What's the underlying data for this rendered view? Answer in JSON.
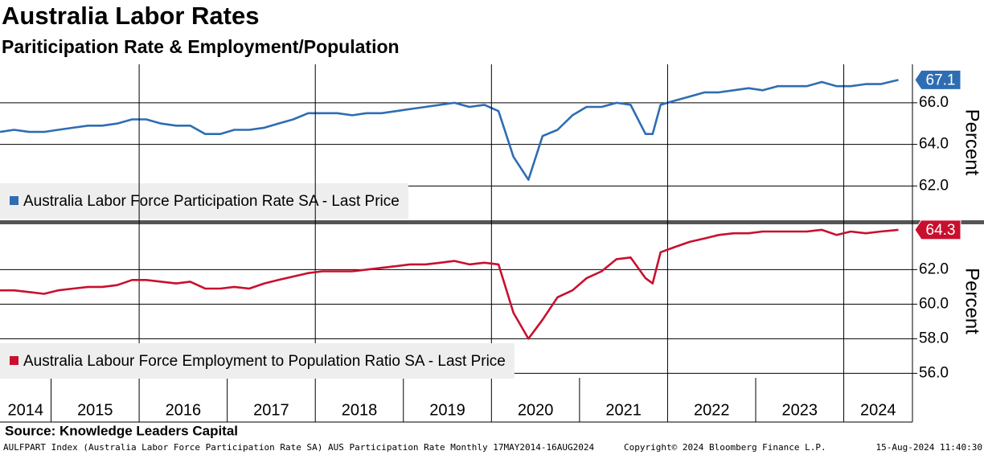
{
  "title": "Australia Labor Rates",
  "subtitle": "Pariticipation Rate & Employment/Population",
  "chart_data": [
    {
      "type": "line",
      "ylabel": "Percent",
      "x": [
        2014.42,
        2014.58,
        2014.75,
        2014.92,
        2015.08,
        2015.25,
        2015.42,
        2015.58,
        2015.75,
        2015.92,
        2016.08,
        2016.25,
        2016.42,
        2016.58,
        2016.75,
        2016.92,
        2017.08,
        2017.25,
        2017.42,
        2017.58,
        2017.75,
        2017.92,
        2018.08,
        2018.25,
        2018.42,
        2018.58,
        2018.75,
        2018.92,
        2019.08,
        2019.25,
        2019.42,
        2019.58,
        2019.75,
        2019.92,
        2020.08,
        2020.25,
        2020.42,
        2020.58,
        2020.75,
        2020.92,
        2021.08,
        2021.25,
        2021.42,
        2021.58,
        2021.75,
        2021.83,
        2021.92,
        2022.08,
        2022.25,
        2022.42,
        2022.58,
        2022.75,
        2022.92,
        2023.08,
        2023.25,
        2023.42,
        2023.58,
        2023.75,
        2023.92,
        2024.08,
        2024.25,
        2024.42,
        2024.62
      ],
      "xlim": [
        2014.42,
        2024.78
      ],
      "ylim": [
        60.35,
        67.85
      ],
      "yticks": [
        {
          "value": 62,
          "label": "62.0"
        },
        {
          "value": 64,
          "label": "64.0"
        },
        {
          "value": 66,
          "label": "66.0"
        }
      ],
      "series": [
        {
          "name": "Australia Labor Force Participation Rate SA - Last Price",
          "color": "#2e6db3",
          "values": [
            64.6,
            64.7,
            64.6,
            64.6,
            64.7,
            64.8,
            64.9,
            64.9,
            65.0,
            65.2,
            65.2,
            65.0,
            64.9,
            64.9,
            64.5,
            64.5,
            64.7,
            64.7,
            64.8,
            65.0,
            65.2,
            65.5,
            65.5,
            65.5,
            65.4,
            65.5,
            65.5,
            65.6,
            65.7,
            65.8,
            65.9,
            66.0,
            65.8,
            65.9,
            65.6,
            63.4,
            62.3,
            64.4,
            64.7,
            65.4,
            65.8,
            65.8,
            66.0,
            65.9,
            64.5,
            64.5,
            65.9,
            66.1,
            66.3,
            66.5,
            66.5,
            66.6,
            66.7,
            66.6,
            66.8,
            66.8,
            66.8,
            67.0,
            66.8,
            66.8,
            66.9,
            66.9,
            67.1
          ]
        }
      ]
    },
    {
      "type": "line",
      "ylabel": "Percent",
      "x": [
        2014.42,
        2014.58,
        2014.75,
        2014.92,
        2015.08,
        2015.25,
        2015.42,
        2015.58,
        2015.75,
        2015.92,
        2016.08,
        2016.25,
        2016.42,
        2016.58,
        2016.75,
        2016.92,
        2017.08,
        2017.25,
        2017.42,
        2017.58,
        2017.75,
        2017.92,
        2018.08,
        2018.25,
        2018.42,
        2018.58,
        2018.75,
        2018.92,
        2019.08,
        2019.25,
        2019.42,
        2019.58,
        2019.75,
        2019.92,
        2020.08,
        2020.25,
        2020.42,
        2020.58,
        2020.75,
        2020.92,
        2021.08,
        2021.25,
        2021.42,
        2021.58,
        2021.75,
        2021.83,
        2021.92,
        2022.08,
        2022.25,
        2022.42,
        2022.58,
        2022.75,
        2022.92,
        2023.08,
        2023.25,
        2023.42,
        2023.58,
        2023.75,
        2023.92,
        2024.08,
        2024.25,
        2024.42,
        2024.62
      ],
      "xlim": [
        2014.42,
        2024.78
      ],
      "xticks": [
        2014,
        2015,
        2016,
        2017,
        2018,
        2019,
        2020,
        2021,
        2022,
        2023,
        2024
      ],
      "ylim": [
        55.74,
        64.62
      ],
      "yticks": [
        {
          "value": 56,
          "label": "56.0"
        },
        {
          "value": 58,
          "label": "58.0"
        },
        {
          "value": 60,
          "label": "60.0"
        },
        {
          "value": 62,
          "label": "62.0"
        }
      ],
      "series": [
        {
          "name": "Australia Labour Force Employment to Population Ratio SA - Last Price",
          "color": "#c8102e",
          "values": [
            60.8,
            60.8,
            60.7,
            60.6,
            60.8,
            60.9,
            61.0,
            61.0,
            61.1,
            61.4,
            61.4,
            61.3,
            61.2,
            61.3,
            60.9,
            60.9,
            61.0,
            60.9,
            61.2,
            61.4,
            61.6,
            61.8,
            61.9,
            61.9,
            61.9,
            62.0,
            62.1,
            62.2,
            62.3,
            62.3,
            62.4,
            62.5,
            62.3,
            62.4,
            62.3,
            59.5,
            58.0,
            59.1,
            60.4,
            60.8,
            61.5,
            61.9,
            62.6,
            62.7,
            61.5,
            61.2,
            63.0,
            63.3,
            63.6,
            63.8,
            64.0,
            64.1,
            64.1,
            64.2,
            64.2,
            64.2,
            64.2,
            64.3,
            64.0,
            64.2,
            64.1,
            64.2,
            64.3
          ]
        }
      ]
    }
  ],
  "footer": {
    "source": "Source: Knowledge Leaders Capital",
    "index": "AULFPART Index (Australia Labor Force Participation Rate SA) AUS Participation Rate  Monthly 17MAY2014-16AUG2024",
    "copyright": "Copyright© 2024 Bloomberg Finance L.P.",
    "timestamp": "15-Aug-2024 11:40:30"
  }
}
